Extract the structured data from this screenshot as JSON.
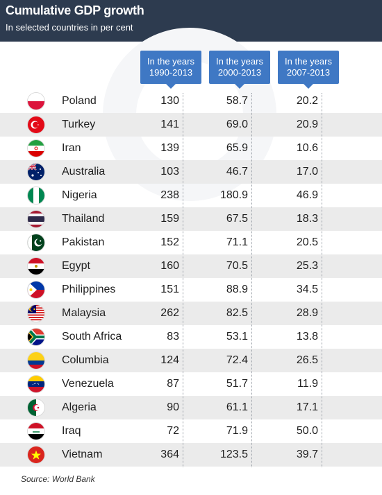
{
  "header": {
    "title": "Cumulative GDP growth",
    "subtitle": "In selected countries in per cent"
  },
  "columns": [
    {
      "line1": "In the years",
      "line2": "1990-2013"
    },
    {
      "line1": "In the years",
      "line2": "2000-2013"
    },
    {
      "line1": "In the years",
      "line2": "2007-2013"
    }
  ],
  "source": "Source: World Bank",
  "chart_data": {
    "type": "table",
    "columns": [
      "In the years 1990-2013",
      "In the years 2000-2013",
      "In the years 2007-2013"
    ],
    "rows": [
      {
        "country": "Poland",
        "flag": "poland-flag-icon",
        "values": [
          "130",
          "58.7",
          "20.2"
        ]
      },
      {
        "country": "Turkey",
        "flag": "turkey-flag-icon",
        "values": [
          "141",
          "69.0",
          "20.9"
        ]
      },
      {
        "country": "Iran",
        "flag": "iran-flag-icon",
        "values": [
          "139",
          "65.9",
          "10.6"
        ]
      },
      {
        "country": "Australia",
        "flag": "australia-flag-icon",
        "values": [
          "103",
          "46.7",
          "17.0"
        ]
      },
      {
        "country": "Nigeria",
        "flag": "nigeria-flag-icon",
        "values": [
          "238",
          "180.9",
          "46.9"
        ]
      },
      {
        "country": "Thailand",
        "flag": "thailand-flag-icon",
        "values": [
          "159",
          "67.5",
          "18.3"
        ]
      },
      {
        "country": "Pakistan",
        "flag": "pakistan-flag-icon",
        "values": [
          "152",
          "71.1",
          "20.5"
        ]
      },
      {
        "country": "Egypt",
        "flag": "egypt-flag-icon",
        "values": [
          "160",
          "70.5",
          "25.3"
        ]
      },
      {
        "country": "Philippines",
        "flag": "philippines-flag-icon",
        "values": [
          "151",
          "88.9",
          "34.5"
        ]
      },
      {
        "country": "Malaysia",
        "flag": "malaysia-flag-icon",
        "values": [
          "262",
          "82.5",
          "28.9"
        ]
      },
      {
        "country": "South Africa",
        "flag": "south-africa-flag-icon",
        "values": [
          "83",
          "53.1",
          "13.8"
        ]
      },
      {
        "country": "Columbia",
        "flag": "colombia-flag-icon",
        "values": [
          "124",
          "72.4",
          "26.5"
        ]
      },
      {
        "country": "Venezuela",
        "flag": "venezuela-flag-icon",
        "values": [
          "87",
          "51.7",
          "11.9"
        ]
      },
      {
        "country": "Algeria",
        "flag": "algeria-flag-icon",
        "values": [
          "90",
          "61.1",
          "17.1"
        ]
      },
      {
        "country": "Iraq",
        "flag": "iraq-flag-icon",
        "values": [
          "72",
          "71.9",
          "50.0"
        ]
      },
      {
        "country": "Vietnam",
        "flag": "vietnam-flag-icon",
        "values": [
          "364",
          "123.5",
          "39.7"
        ]
      }
    ]
  }
}
